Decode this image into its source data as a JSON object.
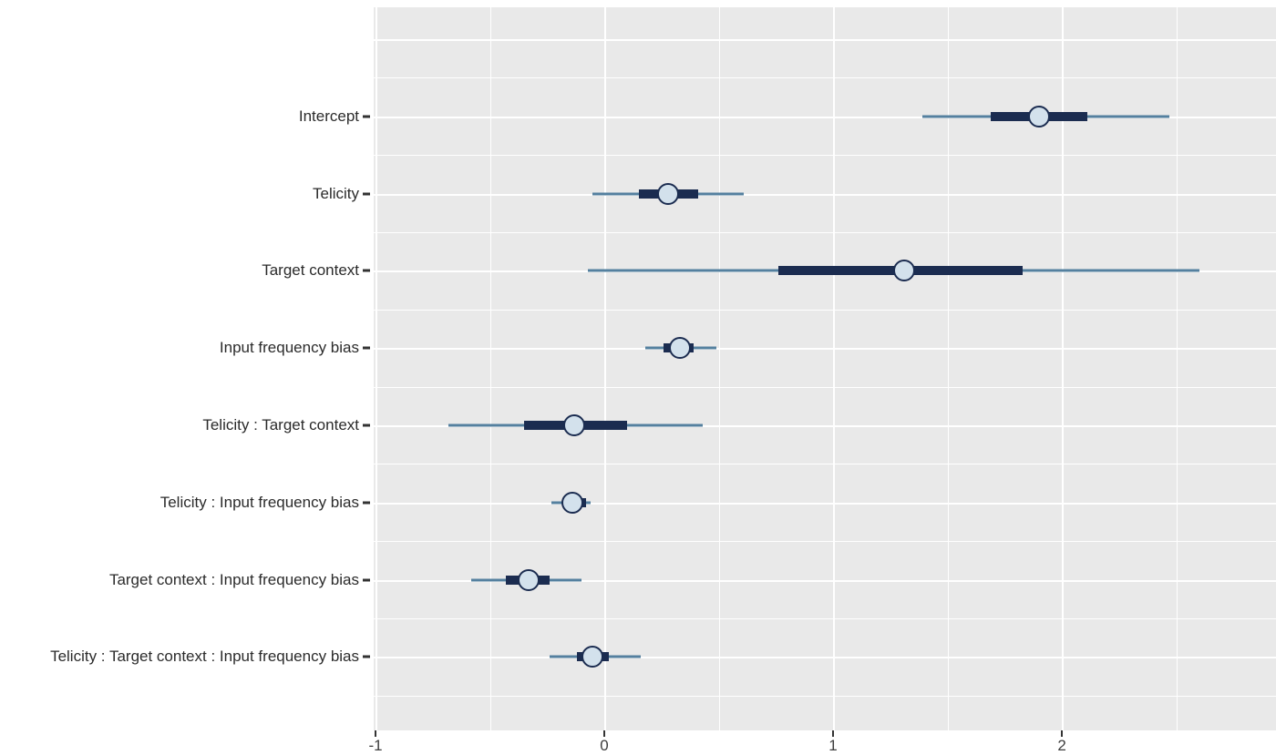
{
  "chart_data": {
    "type": "interval",
    "title": "",
    "xlabel": "",
    "ylabel": "",
    "legend": null,
    "grid": "on",
    "xlim": [
      -1.008,
      2.936
    ],
    "x_ticks": [
      -1,
      0,
      1,
      2
    ],
    "x_tick_labels": [
      "-1",
      "0",
      "1",
      "2"
    ],
    "x_minor_ticks": [
      -0.5,
      0.5,
      1.5,
      2.5
    ],
    "categories": [
      "Intercept",
      "Telicity",
      "Target context",
      "Input frequency bias",
      "Telicity : Target context",
      "Telicity : Input frequency bias",
      "Target context : Input frequency bias",
      "Telicity : Target context : Input frequency bias"
    ],
    "series": [
      {
        "label": "Intercept",
        "point": 1.9,
        "inner": [
          1.69,
          2.11
        ],
        "outer": [
          1.39,
          2.47
        ]
      },
      {
        "label": "Telicity",
        "point": 0.28,
        "inner": [
          0.15,
          0.41
        ],
        "outer": [
          -0.05,
          0.61
        ]
      },
      {
        "label": "Target context",
        "point": 1.31,
        "inner": [
          0.76,
          1.83
        ],
        "outer": [
          -0.07,
          2.6
        ]
      },
      {
        "label": "Input frequency bias",
        "point": 0.33,
        "inner": [
          0.26,
          0.39
        ],
        "outer": [
          0.18,
          0.49
        ]
      },
      {
        "label": "Telicity : Target context",
        "point": -0.13,
        "inner": [
          -0.35,
          0.1
        ],
        "outer": [
          -0.68,
          0.43
        ]
      },
      {
        "label": "Telicity : Input frequency bias",
        "point": -0.14,
        "inner": [
          -0.18,
          -0.08
        ],
        "outer": [
          -0.23,
          -0.06
        ]
      },
      {
        "label": "Target context : Input frequency bias",
        "point": -0.33,
        "inner": [
          -0.43,
          -0.24
        ],
        "outer": [
          -0.58,
          -0.1
        ]
      },
      {
        "label": "Telicity : Target context : Input frequency bias",
        "point": -0.05,
        "inner": [
          -0.12,
          0.02
        ],
        "outer": [
          -0.24,
          0.16
        ]
      }
    ],
    "colors": {
      "panel_background": "#e9e9e9",
      "gridline": "#ffffff",
      "outer_interval": "#54809f",
      "inner_interval": "#1b2c50",
      "point_fill": "#d3e1ec",
      "point_stroke": "#1b2c50",
      "axis_text": "#333333"
    }
  }
}
